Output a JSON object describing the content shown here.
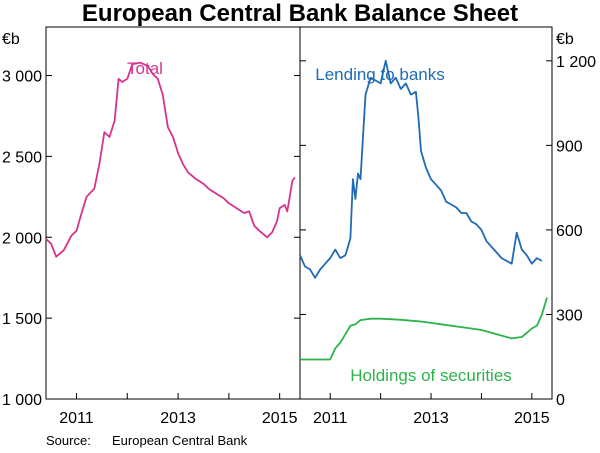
{
  "chart_data": {
    "title": "European Central Bank Balance Sheet",
    "source_label": "Source:",
    "source_text": "European Central Bank",
    "x_ticks": [
      "2011",
      "2013",
      "2015"
    ],
    "panels": [
      {
        "name": "left",
        "type": "line",
        "unit": "€b",
        "ylim": [
          1000,
          3300
        ],
        "y_ticks": [
          {
            "value": 1000,
            "label": "1 000"
          },
          {
            "value": 1500,
            "label": "1 500"
          },
          {
            "value": 2000,
            "label": "2 000"
          },
          {
            "value": 2500,
            "label": "2 500"
          },
          {
            "value": 3000,
            "label": "3 000"
          }
        ],
        "xlim": [
          2010.4,
          2015.4
        ],
        "series": [
          {
            "name": "Total",
            "color": "#d6338f",
            "points": [
              [
                2010.4,
                1990
              ],
              [
                2010.5,
                1960
              ],
              [
                2010.6,
                1880
              ],
              [
                2010.75,
                1920
              ],
              [
                2010.9,
                2010
              ],
              [
                2011.0,
                2040
              ],
              [
                2011.1,
                2150
              ],
              [
                2011.2,
                2250
              ],
              [
                2011.35,
                2300
              ],
              [
                2011.45,
                2450
              ],
              [
                2011.55,
                2650
              ],
              [
                2011.65,
                2620
              ],
              [
                2011.75,
                2720
              ],
              [
                2011.83,
                2980
              ],
              [
                2011.9,
                2960
              ],
              [
                2012.0,
                2980
              ],
              [
                2012.1,
                3070
              ],
              [
                2012.25,
                3080
              ],
              [
                2012.4,
                3060
              ],
              [
                2012.5,
                3010
              ],
              [
                2012.6,
                2980
              ],
              [
                2012.7,
                2880
              ],
              [
                2012.8,
                2680
              ],
              [
                2012.9,
                2620
              ],
              [
                2013.0,
                2520
              ],
              [
                2013.1,
                2450
              ],
              [
                2013.2,
                2400
              ],
              [
                2013.35,
                2360
              ],
              [
                2013.5,
                2330
              ],
              [
                2013.6,
                2300
              ],
              [
                2013.75,
                2270
              ],
              [
                2013.9,
                2240
              ],
              [
                2014.0,
                2210
              ],
              [
                2014.15,
                2180
              ],
              [
                2014.3,
                2150
              ],
              [
                2014.4,
                2160
              ],
              [
                2014.5,
                2070
              ],
              [
                2014.6,
                2040
              ],
              [
                2014.75,
                2000
              ],
              [
                2014.85,
                2030
              ],
              [
                2014.95,
                2100
              ],
              [
                2015.0,
                2180
              ],
              [
                2015.1,
                2200
              ],
              [
                2015.15,
                2160
              ],
              [
                2015.25,
                2350
              ],
              [
                2015.3,
                2370
              ]
            ]
          }
        ]
      },
      {
        "name": "right",
        "type": "line",
        "unit": "€b",
        "ylim": [
          0,
          1320
        ],
        "y_ticks": [
          {
            "value": 0,
            "label": "0"
          },
          {
            "value": 300,
            "label": "300"
          },
          {
            "value": 600,
            "label": "600"
          },
          {
            "value": 900,
            "label": "900"
          },
          {
            "value": 1200,
            "label": "1 200"
          }
        ],
        "xlim": [
          2010.4,
          2015.4
        ],
        "series": [
          {
            "name": "Lending to banks",
            "color": "#1f6bb5",
            "points": [
              [
                2010.4,
                510
              ],
              [
                2010.5,
                470
              ],
              [
                2010.6,
                460
              ],
              [
                2010.7,
                430
              ],
              [
                2010.8,
                460
              ],
              [
                2010.9,
                480
              ],
              [
                2011.0,
                500
              ],
              [
                2011.1,
                530
              ],
              [
                2011.2,
                500
              ],
              [
                2011.3,
                510
              ],
              [
                2011.4,
                570
              ],
              [
                2011.45,
                780
              ],
              [
                2011.5,
                710
              ],
              [
                2011.55,
                800
              ],
              [
                2011.6,
                780
              ],
              [
                2011.7,
                1080
              ],
              [
                2011.8,
                1140
              ],
              [
                2011.9,
                1130
              ],
              [
                2012.0,
                1120
              ],
              [
                2012.1,
                1200
              ],
              [
                2012.2,
                1120
              ],
              [
                2012.3,
                1140
              ],
              [
                2012.4,
                1100
              ],
              [
                2012.5,
                1120
              ],
              [
                2012.6,
                1080
              ],
              [
                2012.7,
                1090
              ],
              [
                2012.75,
                1000
              ],
              [
                2012.8,
                880
              ],
              [
                2012.9,
                820
              ],
              [
                2013.0,
                780
              ],
              [
                2013.1,
                760
              ],
              [
                2013.2,
                740
              ],
              [
                2013.3,
                700
              ],
              [
                2013.4,
                690
              ],
              [
                2013.5,
                680
              ],
              [
                2013.6,
                660
              ],
              [
                2013.7,
                660
              ],
              [
                2013.8,
                630
              ],
              [
                2013.9,
                620
              ],
              [
                2014.0,
                600
              ],
              [
                2014.1,
                560
              ],
              [
                2014.2,
                540
              ],
              [
                2014.3,
                520
              ],
              [
                2014.4,
                500
              ],
              [
                2014.5,
                490
              ],
              [
                2014.6,
                480
              ],
              [
                2014.7,
                590
              ],
              [
                2014.8,
                530
              ],
              [
                2014.9,
                510
              ],
              [
                2015.0,
                480
              ],
              [
                2015.1,
                500
              ],
              [
                2015.2,
                490
              ]
            ]
          },
          {
            "name": "Holdings of securities",
            "color": "#2db34a",
            "points": [
              [
                2010.4,
                140
              ],
              [
                2010.6,
                140
              ],
              [
                2010.8,
                140
              ],
              [
                2011.0,
                140
              ],
              [
                2011.1,
                180
              ],
              [
                2011.2,
                200
              ],
              [
                2011.3,
                230
              ],
              [
                2011.4,
                260
              ],
              [
                2011.5,
                265
              ],
              [
                2011.6,
                280
              ],
              [
                2011.8,
                285
              ],
              [
                2012.0,
                285
              ],
              [
                2012.2,
                283
              ],
              [
                2012.4,
                281
              ],
              [
                2012.6,
                278
              ],
              [
                2012.8,
                275
              ],
              [
                2013.0,
                270
              ],
              [
                2013.2,
                265
              ],
              [
                2013.4,
                260
              ],
              [
                2013.6,
                255
              ],
              [
                2013.8,
                250
              ],
              [
                2014.0,
                245
              ],
              [
                2014.2,
                235
              ],
              [
                2014.4,
                225
              ],
              [
                2014.6,
                215
              ],
              [
                2014.8,
                220
              ],
              [
                2014.9,
                235
              ],
              [
                2015.0,
                250
              ],
              [
                2015.1,
                260
              ],
              [
                2015.2,
                300
              ],
              [
                2015.3,
                360
              ]
            ]
          }
        ]
      }
    ]
  }
}
